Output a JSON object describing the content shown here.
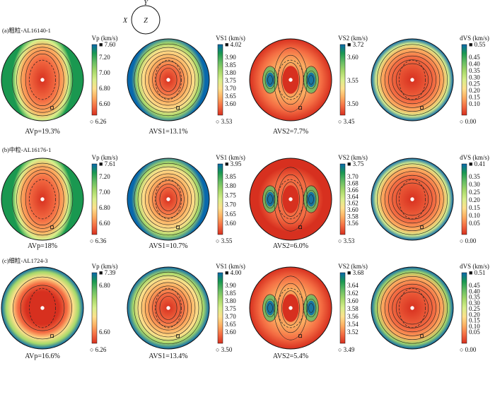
{
  "orientation": {
    "x_label": "X",
    "y_label": "Y",
    "z_label": "Z"
  },
  "colormap": [
    "#d7301f",
    "#f46d43",
    "#fdae61",
    "#fee08b",
    "#d9ef8b",
    "#a6d96a",
    "#66bd63",
    "#1a9850",
    "#0868ac"
  ],
  "rows": [
    {
      "label": "(a)粗粒-AL16140-1",
      "plots": [
        {
          "title": "Vp (km/s)",
          "max": "7.60",
          "ticks": [
            "7.20",
            "7.00",
            "6.80",
            "6.60"
          ],
          "min": "6.26",
          "caption": "AVp=19.3%",
          "pattern": "vp"
        },
        {
          "title": "VS1 (km/s)",
          "max": "4.02",
          "ticks": [
            "3.90",
            "3.85",
            "3.80",
            "3.75",
            "3.70",
            "3.65",
            "3.60"
          ],
          "min": "3.53",
          "caption": "AVS1=13.1%",
          "pattern": "vs1"
        },
        {
          "title": "VS2 (km/s)",
          "max": "3.72",
          "ticks": [
            "3.60",
            "3.55",
            "3.50"
          ],
          "min": "3.45",
          "caption": "AVS2=7.7%",
          "pattern": "vs2"
        },
        {
          "title": "dVS (km/s)",
          "max": "0.55",
          "ticks": [
            "0.45",
            "0.40",
            "0.35",
            "0.30",
            "0.25",
            "0.20",
            "0.15",
            "0.10"
          ],
          "min": "0.00",
          "caption": "",
          "pattern": "dvs"
        }
      ]
    },
    {
      "label": "(b)中粒-AL16176-1",
      "plots": [
        {
          "title": "Vp (km/s)",
          "max": "7.61",
          "ticks": [
            "7.20",
            "7.00",
            "6.80",
            "6.60"
          ],
          "min": "6.36",
          "caption": "AVp=18%",
          "pattern": "vp"
        },
        {
          "title": "VS1 (km/s)",
          "max": "3.95",
          "ticks": [
            "3.85",
            "3.80",
            "3.75",
            "3.70",
            "3.65",
            "3.60"
          ],
          "min": "3.55",
          "caption": "AVS1=10.7%",
          "pattern": "vs1"
        },
        {
          "title": "VS2 (km/s)",
          "max": "3.75",
          "ticks": [
            "3.70",
            "3.68",
            "3.66",
            "3.64",
            "3.62",
            "3.60",
            "3.58",
            "3.56"
          ],
          "min": "3.53",
          "caption": "AVS2=6.0%",
          "pattern": "vs2b"
        },
        {
          "title": "dVS (km/s)",
          "max": "0.41",
          "ticks": [
            "0.35",
            "0.30",
            "0.25",
            "0.20",
            "0.15",
            "0.10",
            "0.05"
          ],
          "min": "0.00",
          "caption": "",
          "pattern": "dvsb"
        }
      ]
    },
    {
      "label": "(c)细粒-AL1724-3",
      "plots": [
        {
          "title": "Vp (km/s)",
          "max": "7.39",
          "ticks": [
            "6.80",
            "6.60"
          ],
          "min": "6.26",
          "caption": "AVp=16.6%",
          "pattern": "vpc"
        },
        {
          "title": "VS1 (km/s)",
          "max": "4.00",
          "ticks": [
            "3.90",
            "3.85",
            "3.80",
            "3.75",
            "3.70",
            "3.65",
            "3.60"
          ],
          "min": "3.50",
          "caption": "AVS1=13.4%",
          "pattern": "vs1c"
        },
        {
          "title": "VS2 (km/s)",
          "max": "3.68",
          "ticks": [
            "3.64",
            "3.62",
            "3.60",
            "3.58",
            "3.56",
            "3.54",
            "3.52"
          ],
          "min": "3.49",
          "caption": "AVS2=5.4%",
          "pattern": "vs2"
        },
        {
          "title": "dVS (km/s)",
          "max": "0.51",
          "ticks": [
            "0.45",
            "0.40",
            "0.35",
            "0.30",
            "0.25",
            "0.20",
            "0.15",
            "0.10",
            "0.05"
          ],
          "min": "0.00",
          "caption": "",
          "pattern": "dvsc"
        }
      ]
    }
  ]
}
